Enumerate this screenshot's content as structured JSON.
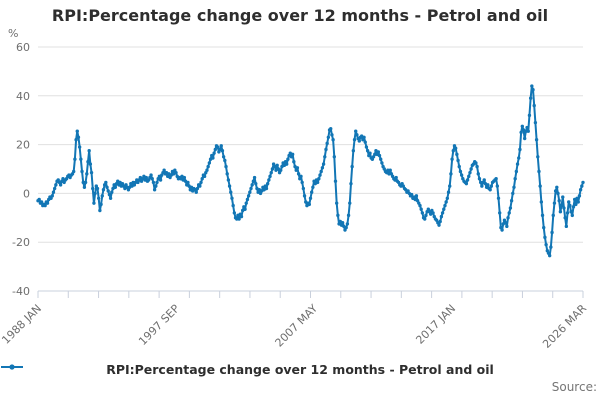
{
  "title": "RPI:Percentage change over 12 months - Petrol and oil",
  "source_label": "Source:",
  "legend": {
    "label": "RPI:Percentage change over 12 months - Petrol and oil"
  },
  "colors": {
    "line": "#1276b5",
    "grid": "#e0e0e0",
    "axis": "#c9d0dc",
    "tick": "#c9d0dc",
    "axis_text": "#6e6e6e",
    "title_text": "#2e2e2e",
    "source_text": "#757575"
  },
  "chart_data": {
    "type": "line",
    "title": "RPI:Percentage change over 12 months - Petrol and oil",
    "xlabel": "",
    "ylabel": "%",
    "ylim": [
      -40,
      60
    ],
    "yticks": [
      60,
      40,
      20,
      0,
      -20,
      -40
    ],
    "grid": true,
    "legend_position": "bottom",
    "frequency": "monthly",
    "x_start": "1988 JAN",
    "x_end": "2026 MAR",
    "x_tick_labels": [
      "1988 JAN",
      "1997 SEP",
      "2007 MAY",
      "2017 JAN",
      "2026 MAR"
    ],
    "x_tick_label_months": [
      0,
      116,
      232,
      348,
      458
    ],
    "x_minor_tick_count": 19,
    "series": [
      {
        "name": "RPI:Percentage change over 12 months - Petrol and oil",
        "color": "#1276b5",
        "values_by_year": {
          "1988": [
            -3,
            -2.5,
            -4,
            -3.5,
            -5,
            -4.5,
            -5,
            -3.5,
            -4,
            -2.5,
            -1.5,
            -2
          ],
          "1989": [
            -1,
            0.5,
            2,
            3.5,
            5,
            5.5,
            4.5,
            3.5,
            5,
            6,
            4.5,
            5.5
          ],
          "1990": [
            6,
            7,
            7.5,
            6.5,
            7.5,
            8,
            9,
            14,
            22,
            25.5,
            23,
            19
          ],
          "1991": [
            14,
            9,
            4.5,
            2.5,
            4.5,
            8,
            13,
            17.5,
            12,
            8.5,
            2,
            -4
          ],
          "1992": [
            0,
            3,
            2,
            -2,
            -7,
            -4.5,
            -1,
            1.5,
            3.5,
            4.5,
            2.5,
            1
          ],
          "1993": [
            -0.5,
            -2,
            0.5,
            2,
            3.5,
            2.5,
            4,
            5,
            3.5,
            4.5,
            3,
            4
          ],
          "1994": [
            3,
            2,
            3.5,
            2.5,
            1.5,
            2.5,
            4,
            3,
            4.5,
            3.5,
            4.5,
            5.5
          ],
          "1995": [
            4.5,
            5.5,
            6.5,
            5,
            6,
            7,
            5.5,
            6.5,
            5,
            5.5,
            6.5,
            7.5
          ],
          "1996": [
            6,
            4.5,
            1.5,
            3,
            4.5,
            6,
            7,
            5.5,
            7.5,
            8.5,
            9.5,
            8
          ],
          "1997": [
            8.5,
            7,
            8,
            6.5,
            7.5,
            9,
            8,
            9.5,
            8.5,
            7,
            6,
            6.5
          ],
          "1998": [
            6,
            7,
            5.5,
            6.5,
            5,
            3.5,
            4.5,
            3,
            1.5,
            2.5,
            1,
            2
          ],
          "1999": [
            1.5,
            0.5,
            2,
            3.5,
            3,
            4.5,
            6,
            7.5,
            7,
            8.5,
            9.5,
            11
          ],
          "2000": [
            12.5,
            14,
            15.5,
            14.5,
            16.5,
            18,
            19.5,
            19,
            17,
            18,
            19.5,
            17.5
          ],
          "2001": [
            15,
            13.5,
            11,
            8,
            5.5,
            3,
            0.5,
            -2,
            -5,
            -8,
            -10,
            -10.5
          ],
          "2002": [
            -9,
            -10.5,
            -8.5,
            -9.5,
            -7,
            -5.5,
            -6.5,
            -4,
            -2.5,
            -1,
            0.5,
            2
          ],
          "2003": [
            3.5,
            5,
            6.5,
            4,
            2,
            0.5,
            1.5,
            0,
            1,
            2.5,
            1.5,
            3
          ],
          "2004": [
            2,
            4,
            5.5,
            7,
            8.5,
            10,
            12,
            11,
            9.5,
            11.5,
            10,
            8.5
          ],
          "2005": [
            9.5,
            11,
            12.5,
            11.5,
            13,
            12,
            14,
            15.5,
            16.5,
            15,
            16,
            13
          ],
          "2006": [
            11,
            9.5,
            10.5,
            8,
            6,
            7,
            4.5,
            2,
            -1,
            -3.5,
            -5,
            -4
          ],
          "2007": [
            -4.5,
            -2,
            0.5,
            2.5,
            5,
            4,
            5.5,
            4.5,
            6,
            7.5,
            9,
            10.5
          ],
          "2008": [
            12,
            15,
            18,
            20.5,
            23,
            26,
            26.5,
            24,
            22,
            15,
            5,
            -4
          ],
          "2009": [
            -9,
            -12.5,
            -11.5,
            -13,
            -12,
            -13.5,
            -15,
            -14,
            -12.5,
            -9,
            -4,
            4
          ],
          "2010": [
            11,
            17.5,
            22,
            25.5,
            24,
            22.5,
            21.5,
            23,
            23.5,
            22,
            23,
            21
          ],
          "2011": [
            19,
            17.5,
            15.5,
            16.5,
            14.5,
            14,
            15,
            16,
            17.5,
            16,
            17,
            15.5
          ],
          "2012": [
            14,
            12.5,
            11,
            10,
            9,
            8.5,
            9.5,
            8,
            9.5,
            8,
            7,
            6
          ],
          "2013": [
            5.5,
            6.5,
            5,
            4.5,
            3.5,
            3,
            4,
            3,
            2,
            1.5,
            0.5,
            1
          ],
          "2014": [
            0,
            -1,
            -0.5,
            -2,
            -1.5,
            -2.5,
            -1,
            -3,
            -4,
            -5,
            -6.5,
            -8
          ],
          "2015": [
            -10,
            -10.5,
            -9,
            -7.5,
            -6.5,
            -7.5,
            -8.5,
            -7,
            -8,
            -9.5,
            -10.5,
            -11
          ],
          "2016": [
            -12,
            -13,
            -11.5,
            -9.5,
            -8,
            -6.5,
            -5,
            -3.5,
            -2,
            0.5,
            3,
            8
          ],
          "2017": [
            14,
            17.5,
            19.5,
            18.5,
            16,
            13.5,
            11,
            9,
            7.5,
            6,
            5,
            4.5
          ],
          "2018": [
            4,
            5.5,
            7,
            8.5,
            10,
            11.5,
            12,
            13,
            12.5,
            11,
            8,
            6
          ],
          "2019": [
            4.5,
            3,
            4.5,
            5.5,
            4,
            2.5,
            3.5,
            2,
            1.5,
            3,
            4.5,
            5
          ],
          "2020": [
            5.5,
            6,
            3,
            -2,
            -8,
            -14,
            -15,
            -12.5,
            -11,
            -12,
            -13.5,
            -10
          ],
          "2021": [
            -8,
            -6,
            -3,
            0,
            2.5,
            6,
            9,
            12,
            14.5,
            18,
            25,
            27.5
          ],
          "2022": [
            26,
            22.5,
            25.5,
            27,
            25.5,
            32,
            39,
            44,
            42.5,
            36,
            29,
            22
          ],
          "2023": [
            15,
            9,
            3,
            -3.5,
            -9,
            -14,
            -18,
            -21,
            -23.5,
            -24.5,
            -25.5,
            -22
          ],
          "2024": [
            -16,
            -9,
            -4,
            1,
            2.5,
            0,
            -3,
            -7.5,
            -5,
            -1.5,
            -6,
            -10
          ],
          "2025": [
            -13.5,
            -8,
            -3.5,
            -5,
            -7.5,
            -9,
            -5.5,
            -2.5,
            -4.5,
            -2,
            -3.5,
            -1
          ],
          "2026": [
            1.5,
            3,
            4.5
          ]
        }
      }
    ]
  }
}
